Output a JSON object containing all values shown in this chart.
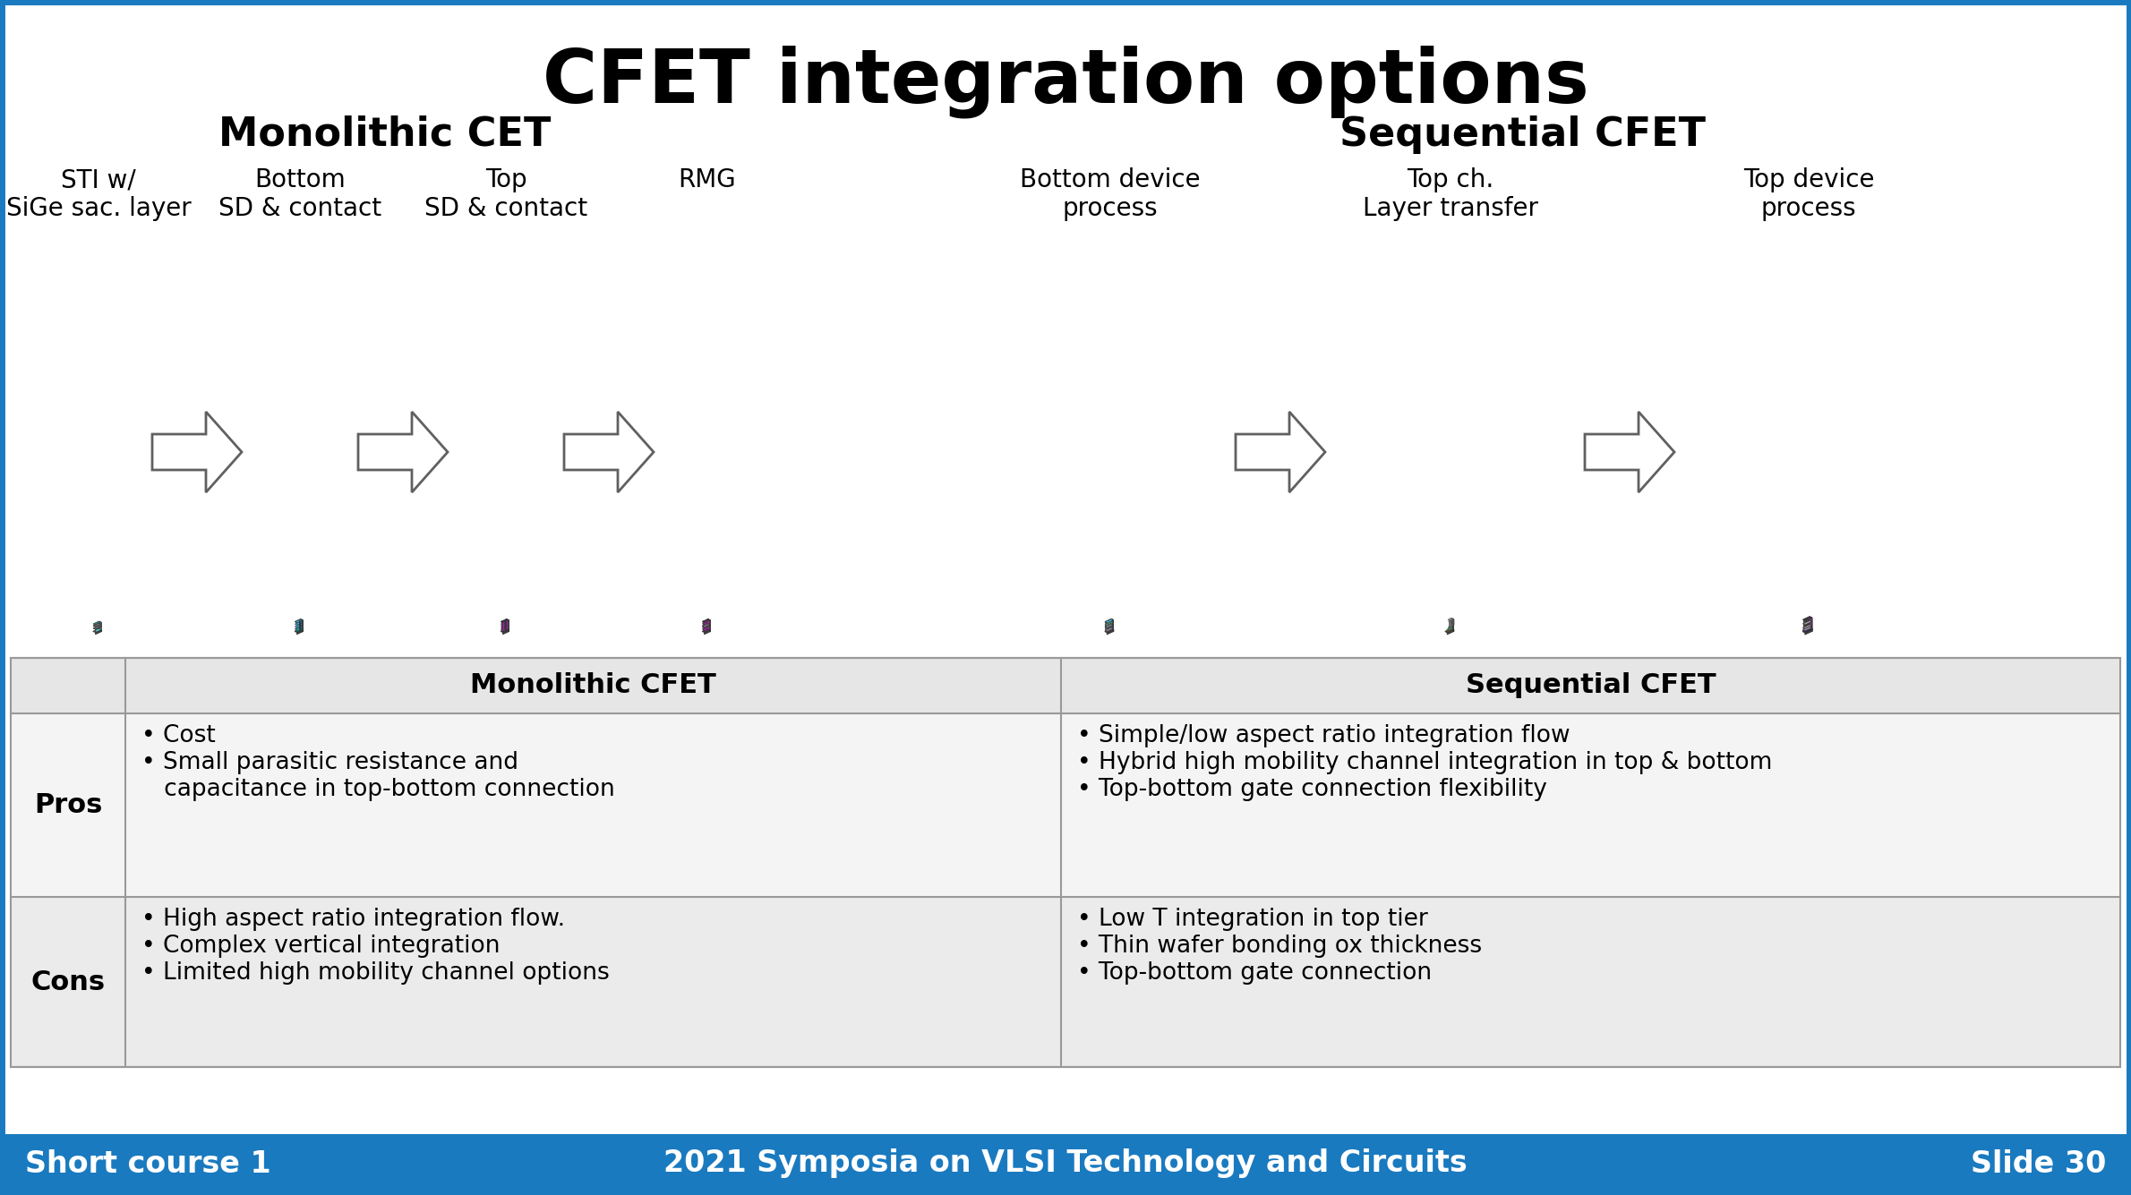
{
  "title": "CFET integration options",
  "title_fontsize": 60,
  "bg_color": "#ffffff",
  "border_color": "#1a7abf",
  "footer_bg": "#1a7abf",
  "footer_left": "Short course 1",
  "footer_center": "2021 Symposia on VLSI Technology and Circuits",
  "footer_right": "Slide 30",
  "footer_fontsize": 24,
  "monolithic_label": "Monolithic CET",
  "sequential_label": "Sequential CFET",
  "section_fontsize": 32,
  "mono_steps": [
    "STI w/\nSiGe sac. layer",
    "Bottom\nSD & contact",
    "Top\nSD & contact",
    "RMG"
  ],
  "seq_steps": [
    "Bottom device\nprocess",
    "Top ch.\nLayer transfer",
    "Top device\nprocess"
  ],
  "step_fontsize": 20,
  "table_header_mono": "Monolithic CFET",
  "table_header_seq": "Sequential CFET",
  "table_header_fontsize": 22,
  "pros_label": "Pros",
  "cons_label": "Cons",
  "label_fontsize": 22,
  "pros_mono": [
    "• Cost",
    "• Small parasitic resistance and\n   capacitance in top-bottom connection"
  ],
  "pros_seq": [
    "• Simple/low aspect ratio integration flow",
    "• Hybrid high mobility channel integration in top & bottom",
    "• Top-bottom gate connection flexibility"
  ],
  "cons_mono": [
    "• High aspect ratio integration flow.",
    "• Complex vertical integration",
    "• Limited high mobility channel options"
  ],
  "cons_seq": [
    "• Low T integration in top tier",
    "• Thin wafer bonding ox thickness",
    "• Top-bottom gate connection"
  ],
  "cell_fontsize": 19,
  "table_line_color": "#999999"
}
